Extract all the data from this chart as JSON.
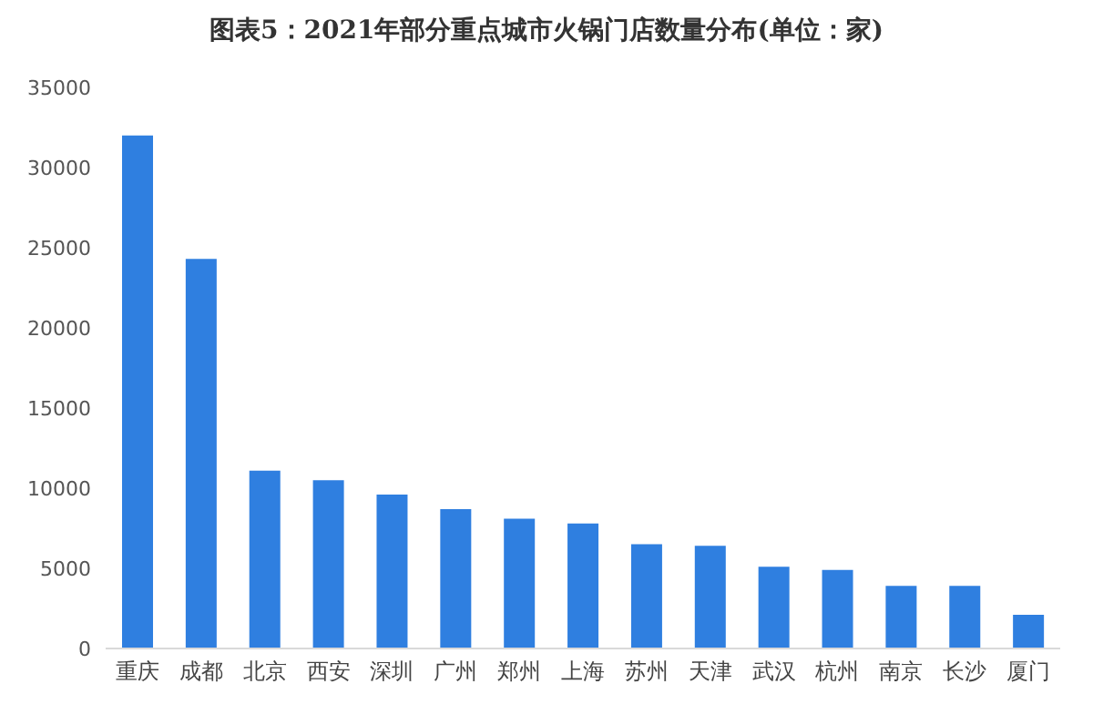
{
  "chart_data": {
    "type": "bar",
    "title": "图表5：2021年部分重点城市火锅门店数量分布(单位：家)",
    "categories": [
      "重庆",
      "成都",
      "北京",
      "西安",
      "深圳",
      "广州",
      "郑州",
      "上海",
      "苏州",
      "天津",
      "武汉",
      "杭州",
      "南京",
      "长沙",
      "厦门"
    ],
    "values": [
      32000,
      24300,
      11100,
      10500,
      9600,
      8700,
      8100,
      7800,
      6500,
      6400,
      5100,
      4900,
      3900,
      3900,
      2100
    ],
    "color": "#2f7fe0",
    "ylim": [
      0,
      35000
    ],
    "yticks": [
      0,
      5000,
      10000,
      15000,
      20000,
      25000,
      30000,
      35000
    ],
    "grid": false
  }
}
